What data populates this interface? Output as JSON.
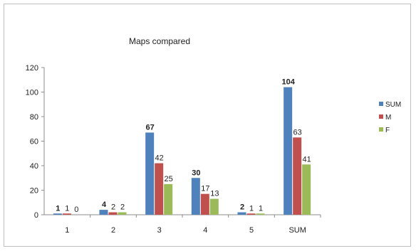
{
  "chart_data": {
    "type": "bar",
    "title": "Maps compared",
    "xlabel": "",
    "ylabel": "",
    "categories": [
      "1",
      "2",
      "3",
      "4",
      "5",
      "SUM"
    ],
    "series": [
      {
        "name": "SUM",
        "values": [
          1,
          4,
          67,
          30,
          2,
          104
        ],
        "color": "#4f81bd"
      },
      {
        "name": "M",
        "values": [
          1,
          2,
          42,
          17,
          1,
          63
        ],
        "color": "#c0504d"
      },
      {
        "name": "F",
        "values": [
          0,
          2,
          25,
          13,
          1,
          41
        ],
        "color": "#9bbb59"
      }
    ],
    "ylim": [
      0,
      120
    ],
    "yticks": [
      "0",
      "20",
      "40",
      "60",
      "80",
      "100",
      "120"
    ],
    "grid": false,
    "legend_position": "right"
  }
}
